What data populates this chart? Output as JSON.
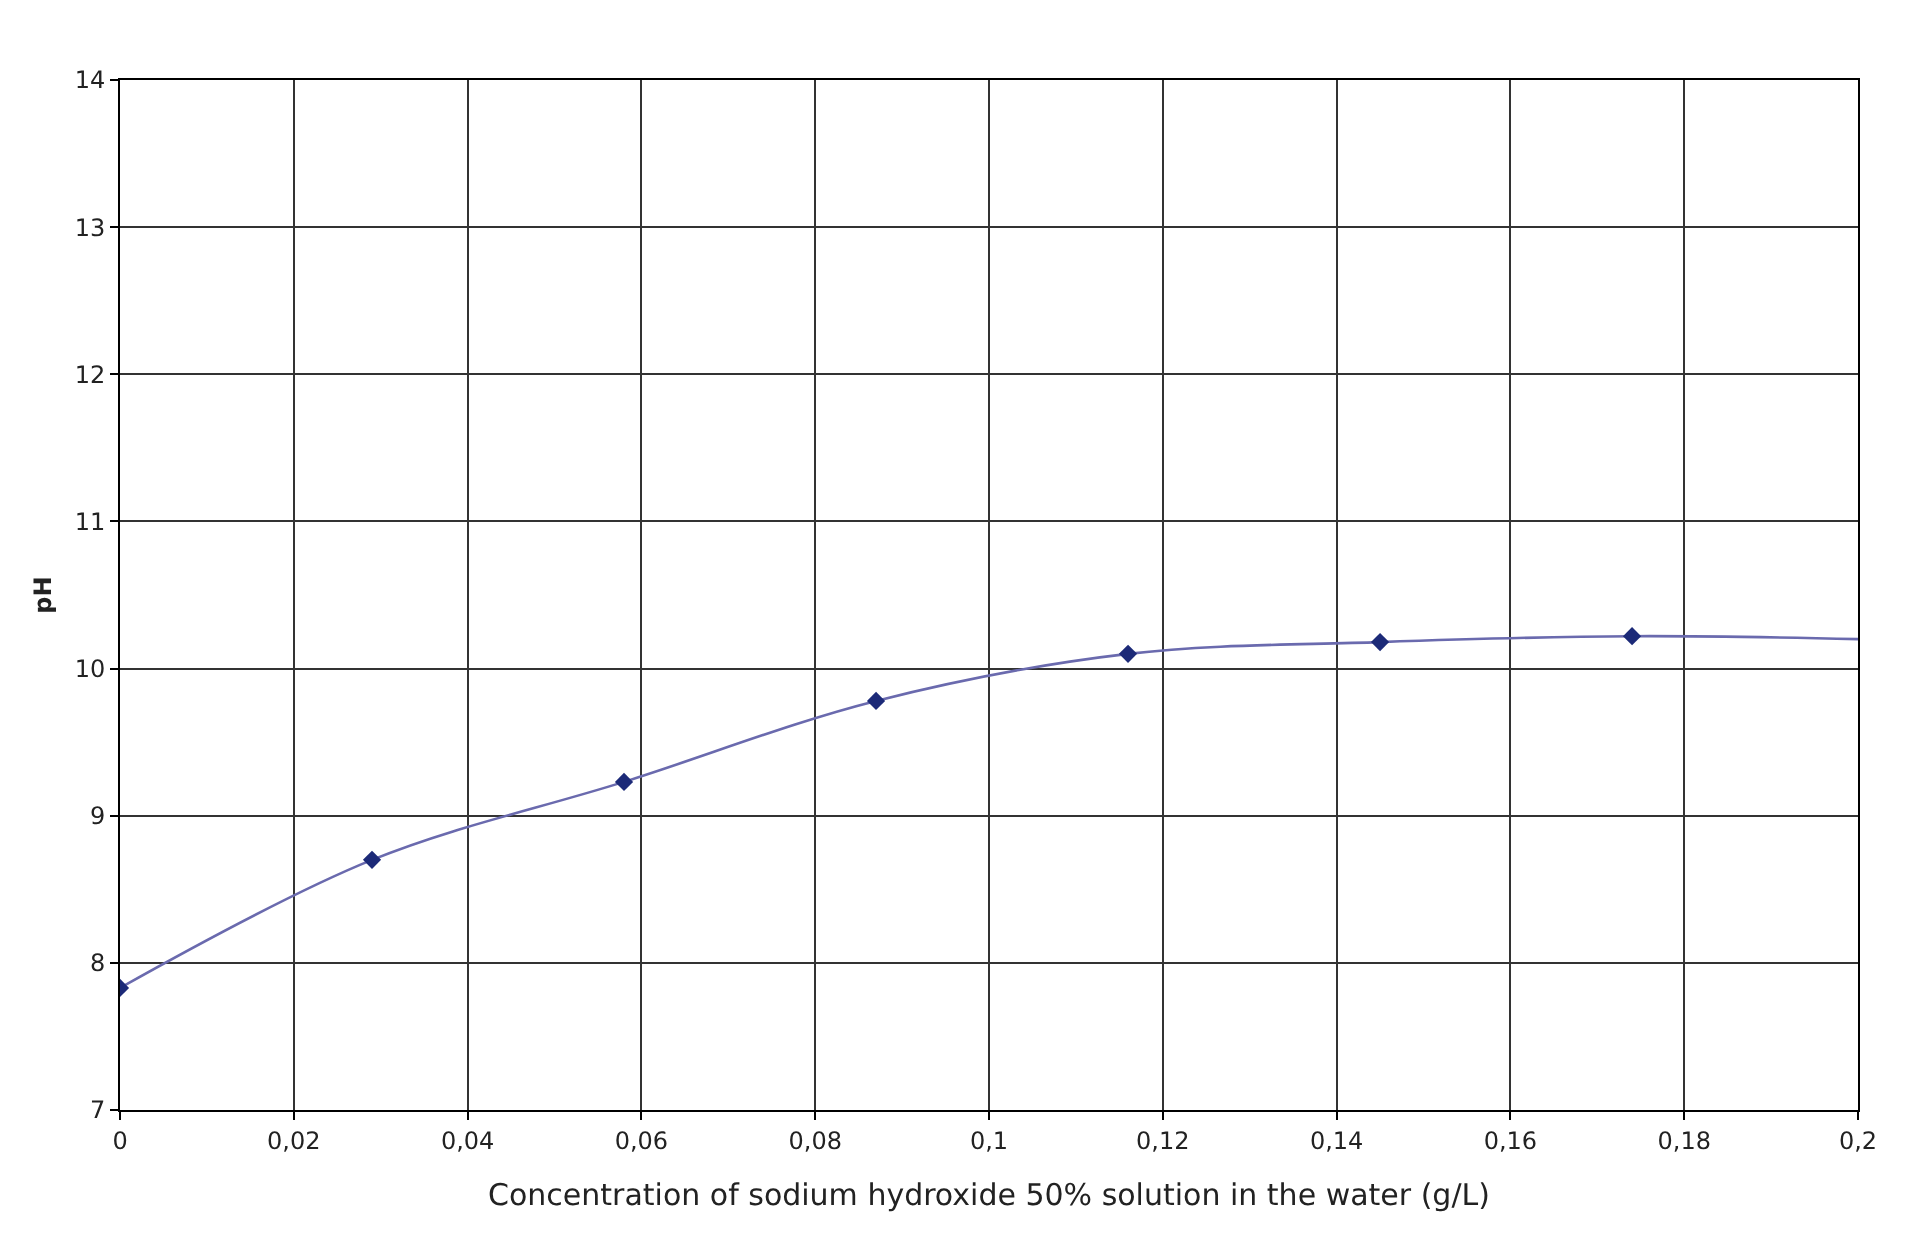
{
  "chart_data": {
    "type": "line",
    "xlabel": "Concentration of sodium hydroxide 50% solution in the water (g/L)",
    "ylabel": "pH",
    "xlim": [
      0,
      0.2
    ],
    "xticks": [
      {
        "value": 0,
        "label": "0"
      },
      {
        "value": 0.02,
        "label": "0,02"
      },
      {
        "value": 0.04,
        "label": "0,04"
      },
      {
        "value": 0.06,
        "label": "0,06"
      },
      {
        "value": 0.08,
        "label": "0,08"
      },
      {
        "value": 0.1,
        "label": "0,1"
      },
      {
        "value": 0.12,
        "label": "0,12"
      },
      {
        "value": 0.14,
        "label": "0,14"
      },
      {
        "value": 0.16,
        "label": "0,16"
      },
      {
        "value": 0.18,
        "label": "0,18"
      },
      {
        "value": 0.2,
        "label": "0,2"
      }
    ],
    "ylim": [
      7,
      14
    ],
    "yticks": [
      7,
      8,
      9,
      10,
      11,
      12,
      13,
      14
    ],
    "grid": true,
    "series": [
      {
        "color": "#6a6aae",
        "marker": "none",
        "x": [
          0,
          0.029,
          0.058,
          0.087,
          0.116,
          0.145,
          0.174,
          0.2
        ],
        "values": [
          7.83,
          8.7,
          9.23,
          9.78,
          10.1,
          10.18,
          10.22,
          10.2
        ]
      },
      {
        "type": "scatter",
        "color": "#1c2a78",
        "marker": "diamond",
        "x": [
          0,
          0.029,
          0.058,
          0.087,
          0.116,
          0.145,
          0.174
        ],
        "values": [
          7.83,
          8.7,
          9.23,
          9.78,
          10.1,
          10.18,
          10.22
        ]
      }
    ]
  }
}
